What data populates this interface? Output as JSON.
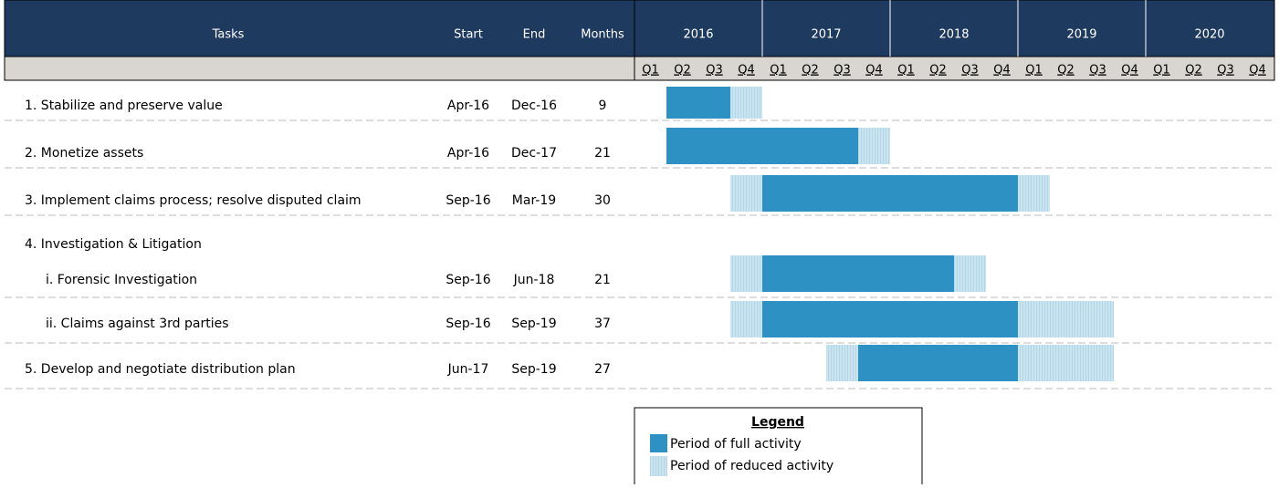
{
  "header": {
    "tasks": "Tasks",
    "start": "Start",
    "end": "End",
    "months": "Months",
    "years": [
      "2016",
      "2017",
      "2018",
      "2019",
      "2020"
    ],
    "quarters": [
      "Q1",
      "Q2",
      "Q3",
      "Q4"
    ]
  },
  "tasks": [
    {
      "label": "1. Stabilize and preserve value",
      "start": "Apr-16",
      "end": "Dec-16",
      "months": "9",
      "full": [
        1,
        2
      ],
      "reduced": [
        [
          3,
          3
        ]
      ]
    },
    {
      "label": "2. Monetize assets",
      "start": "Apr-16",
      "end": "Dec-17",
      "months": "21",
      "full": [
        1,
        6
      ],
      "reduced": [
        [
          7,
          7
        ]
      ]
    },
    {
      "label": "3. Implement claims process; resolve disputed claim",
      "start": "Sep-16",
      "end": "Mar-19",
      "months": "30",
      "full": [
        4,
        11
      ],
      "reduced": [
        [
          3,
          3
        ],
        [
          12,
          12
        ]
      ]
    },
    {
      "label": "4. Investigation & Litigation"
    },
    {
      "label": "i. Forensic Investigation",
      "start": "Sep-16",
      "end": "Jun-18",
      "months": "21",
      "full": [
        4,
        9
      ],
      "reduced": [
        [
          3,
          3
        ],
        [
          10,
          10
        ]
      ]
    },
    {
      "label": "ii. Claims against 3rd parties",
      "start": "Sep-16",
      "end": "Sep-19",
      "months": "37",
      "full": [
        4,
        11
      ],
      "reduced": [
        [
          3,
          3
        ],
        [
          12,
          14
        ]
      ]
    },
    {
      "label": "5. Develop and negotiate distribution plan",
      "start": "Jun-17",
      "end": "Sep-19",
      "months": "27",
      "full": [
        7,
        11
      ],
      "reduced": [
        [
          6,
          6
        ],
        [
          12,
          14
        ]
      ]
    }
  ],
  "legend": {
    "title": "Legend",
    "full": "Period of full activity",
    "reduced": "Period of reduced activity"
  }
}
